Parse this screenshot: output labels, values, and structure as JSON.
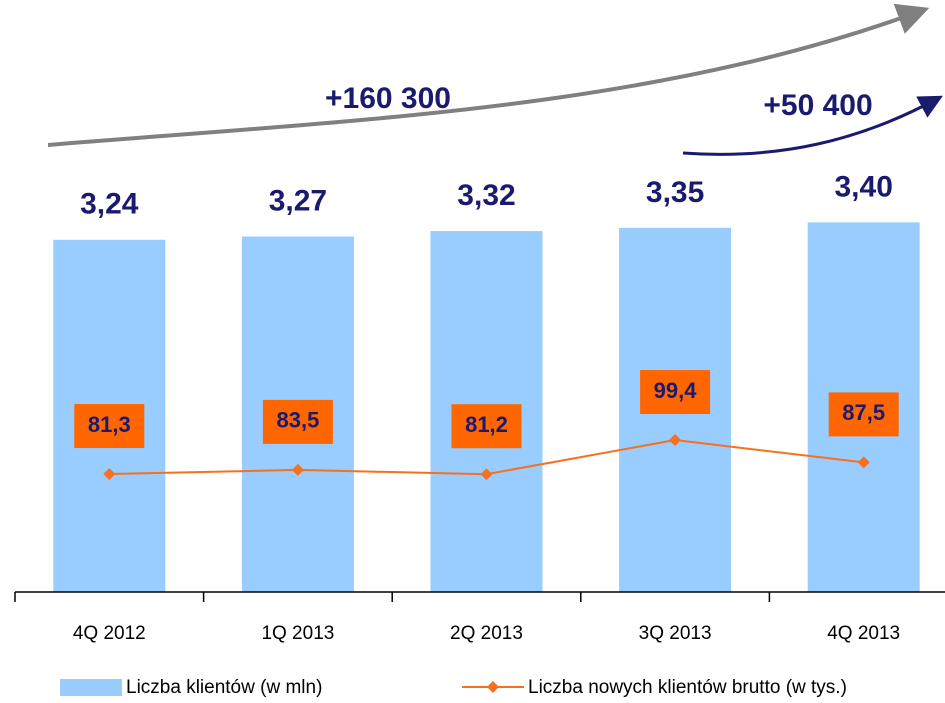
{
  "chart_data": {
    "type": "bar-line",
    "categories": [
      "4Q 2012",
      "1Q 2013",
      "2Q 2013",
      "3Q 2013",
      "4Q 2013"
    ],
    "series": [
      {
        "name": "Liczba klientów (w mln)",
        "type": "bar",
        "color": "#99ccff",
        "values": [
          3.24,
          3.27,
          3.32,
          3.35,
          3.4
        ],
        "value_labels": [
          "3,24",
          "3,27",
          "3,32",
          "3,35",
          "3,40"
        ]
      },
      {
        "name": "Liczba nowych klientów brutto (w tys.)",
        "type": "line",
        "axis": "y2",
        "color": "#f7701e",
        "values": [
          81.3,
          83.5,
          81.2,
          99.4,
          87.5
        ],
        "value_labels": [
          "81,3",
          "83,5",
          "81,2",
          "99,4",
          "87,5"
        ]
      }
    ],
    "ylim": [
      0,
      5.4
    ],
    "y2lim": [
      18.5,
      331
    ],
    "annotations": [
      "+160 300",
      "+50 400"
    ],
    "legend": "bottom"
  }
}
